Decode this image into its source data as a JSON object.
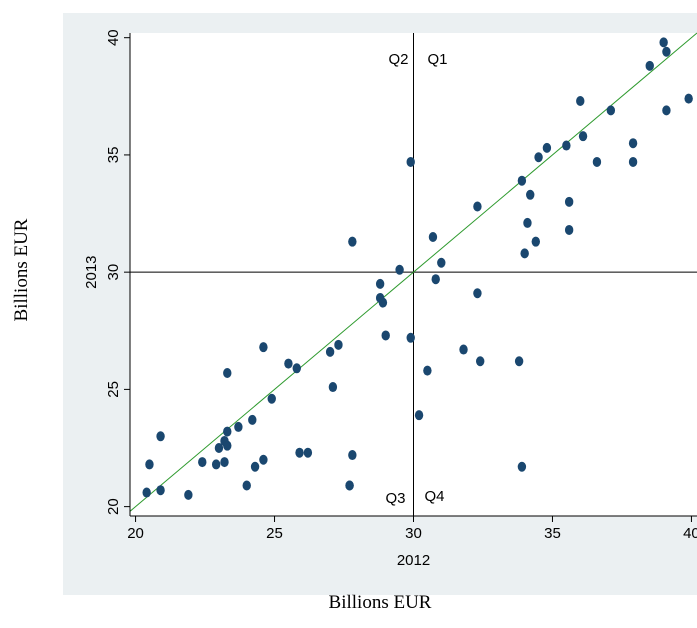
{
  "outer_labels": {
    "x": "Billions EUR",
    "y": "Billions EUR"
  },
  "chart_data": {
    "type": "scatter",
    "title": "",
    "xlabel": "2012",
    "ylabel": "2013",
    "xlim": [
      19.8,
      40.2
    ],
    "ylim": [
      19.6,
      40.2
    ],
    "xticks": [
      20,
      25,
      30,
      35,
      40
    ],
    "yticks": [
      20,
      25,
      30,
      35,
      40
    ],
    "grid": false,
    "reference_lines": {
      "x": 30,
      "y": 30,
      "diagonal": "y = x"
    },
    "quadrant_labels": [
      "Q1",
      "Q2",
      "Q3",
      "Q4"
    ],
    "colors": {
      "panel_background": "#ebf0f2",
      "plot_background": "#ffffff",
      "marker": "#1a476f",
      "diagonal_line": "#2e9a2e",
      "reference_line": "#000000"
    },
    "series": [
      {
        "points": [
          [
            20.4,
            20.6
          ],
          [
            20.5,
            21.8
          ],
          [
            20.9,
            20.7
          ],
          [
            20.9,
            23.0
          ],
          [
            21.9,
            20.5
          ],
          [
            22.4,
            21.9
          ],
          [
            22.9,
            21.8
          ],
          [
            23.0,
            22.5
          ],
          [
            23.2,
            21.9
          ],
          [
            23.2,
            22.8
          ],
          [
            23.3,
            22.6
          ],
          [
            23.3,
            23.2
          ],
          [
            23.3,
            25.7
          ],
          [
            23.7,
            23.4
          ],
          [
            24.0,
            20.9
          ],
          [
            24.2,
            23.7
          ],
          [
            24.3,
            21.7
          ],
          [
            24.6,
            26.8
          ],
          [
            24.6,
            22.0
          ],
          [
            24.9,
            24.6
          ],
          [
            25.5,
            26.1
          ],
          [
            25.8,
            25.9
          ],
          [
            25.9,
            22.3
          ],
          [
            26.2,
            22.3
          ],
          [
            27.0,
            26.6
          ],
          [
            27.1,
            25.1
          ],
          [
            27.3,
            26.9
          ],
          [
            27.7,
            20.9
          ],
          [
            27.7,
            20.9
          ],
          [
            27.8,
            22.2
          ],
          [
            27.8,
            31.3
          ],
          [
            28.8,
            29.5
          ],
          [
            28.8,
            28.9
          ],
          [
            28.9,
            28.7
          ],
          [
            29.0,
            27.3
          ],
          [
            29.5,
            30.1
          ],
          [
            29.9,
            27.2
          ],
          [
            29.9,
            34.7
          ],
          [
            30.2,
            23.9
          ],
          [
            30.5,
            25.8
          ],
          [
            30.7,
            31.5
          ],
          [
            30.8,
            29.7
          ],
          [
            31.0,
            30.4
          ],
          [
            31.8,
            26.7
          ],
          [
            32.3,
            32.8
          ],
          [
            32.3,
            29.1
          ],
          [
            32.4,
            26.2
          ],
          [
            33.8,
            26.2
          ],
          [
            33.9,
            33.9
          ],
          [
            33.9,
            21.7
          ],
          [
            34.0,
            30.8
          ],
          [
            34.1,
            32.1
          ],
          [
            34.2,
            33.3
          ],
          [
            34.4,
            31.3
          ],
          [
            34.5,
            34.9
          ],
          [
            34.8,
            35.3
          ],
          [
            35.5,
            35.4
          ],
          [
            35.6,
            33.0
          ],
          [
            35.6,
            31.8
          ],
          [
            36.0,
            37.3
          ],
          [
            36.1,
            35.8
          ],
          [
            36.6,
            34.7
          ],
          [
            37.1,
            36.9
          ],
          [
            37.9,
            35.5
          ],
          [
            37.9,
            34.7
          ],
          [
            38.5,
            38.8
          ],
          [
            39.0,
            39.8
          ],
          [
            39.1,
            39.4
          ],
          [
            39.1,
            36.9
          ],
          [
            39.9,
            37.4
          ]
        ]
      }
    ]
  }
}
